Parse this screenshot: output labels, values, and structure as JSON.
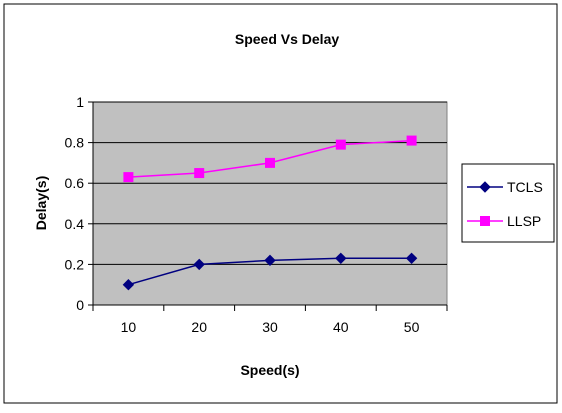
{
  "chart_data": {
    "type": "line",
    "title": "Speed Vs Delay",
    "xlabel": "Speed(s)",
    "ylabel": "Delay(s)",
    "categories": [
      "10",
      "20",
      "30",
      "40",
      "50"
    ],
    "ylim": [
      0,
      1
    ],
    "yticks": [
      "0",
      "0.2",
      "0.4",
      "0.6",
      "0.8",
      "1"
    ],
    "grid": true,
    "legend_position": "right",
    "plot_background": "#c0c0c0",
    "series": [
      {
        "name": "TCLS",
        "marker": "diamond",
        "color": "#000080",
        "values": [
          0.1,
          0.2,
          0.22,
          0.23,
          0.23
        ]
      },
      {
        "name": "LLSP",
        "marker": "square",
        "color": "#ff00ff",
        "values": [
          0.63,
          0.65,
          0.7,
          0.79,
          0.81
        ]
      }
    ]
  }
}
